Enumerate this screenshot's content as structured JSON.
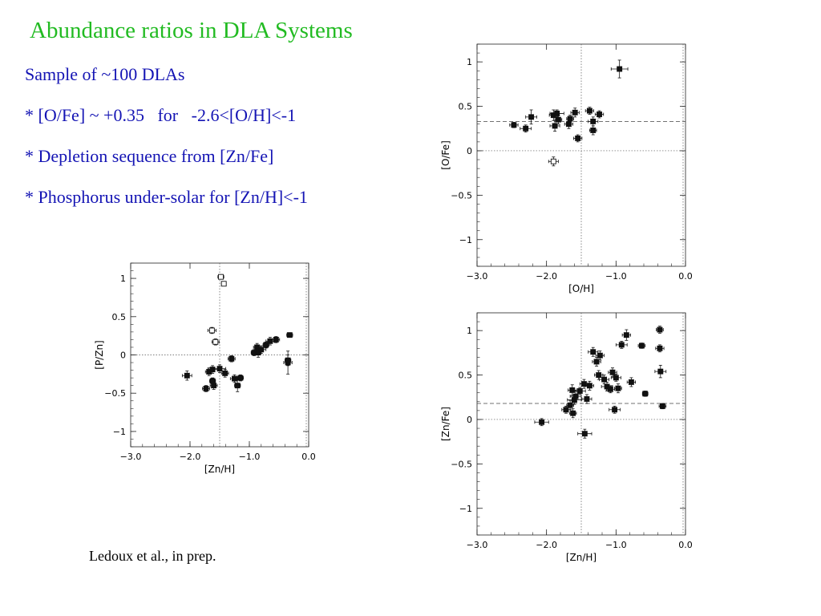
{
  "slide": {
    "title": "Abundance ratios in DLA Systems",
    "bullets": [
      "Sample of ~100 DLAs",
      "* [O/Fe] ~ +0.35   for   -2.6<[O/H]<-1",
      "* Depletion sequence from [Zn/Fe]",
      "* Phosphorus under-solar for [Zn/H]<-1"
    ],
    "citation": "Ledoux et al., in prep."
  },
  "colors": {
    "title": "#22bb22",
    "bullets": "#1414b4",
    "points": "#111111"
  },
  "chart_data": [
    {
      "id": "o-fe",
      "type": "scatter",
      "xlabel": "[O/H]",
      "ylabel": "[O/Fe]",
      "xlim": [
        -3.0,
        0.0
      ],
      "ylim": [
        -1.3,
        1.2
      ],
      "xticks": [
        -3.0,
        -2.0,
        -1.0,
        0.0
      ],
      "xtick_labels": [
        "−3.0",
        "−2.0",
        "−1.0",
        "0.0"
      ],
      "yticks": [
        -1,
        -0.5,
        0,
        0.5,
        1
      ],
      "ytick_labels": [
        "−1",
        "−0.5",
        "0",
        "0.5",
        "1"
      ],
      "ref_lines": {
        "vertical": [
          -1.5
        ],
        "horizontal_dotted": [
          0
        ],
        "horizontal_dashed": [
          0.33
        ]
      },
      "points": [
        {
          "x": -0.95,
          "y": 0.92,
          "xerr": 0.12,
          "yerr": 0.1
        },
        {
          "x": -2.47,
          "y": 0.29,
          "xerr": 0.06,
          "yerr": 0.03
        },
        {
          "x": -2.3,
          "y": 0.25,
          "xerr": 0.08,
          "yerr": 0.04
        },
        {
          "x": -2.22,
          "y": 0.38,
          "xerr": 0.08,
          "yerr": 0.08
        },
        {
          "x": -1.9,
          "y": 0.4,
          "xerr": 0.06,
          "yerr": 0.06
        },
        {
          "x": -1.85,
          "y": 0.42,
          "xerr": 0.1,
          "yerr": 0.04
        },
        {
          "x": -1.83,
          "y": 0.35,
          "xerr": 0.05,
          "yerr": 0.05
        },
        {
          "x": -1.88,
          "y": 0.28,
          "xerr": 0.07,
          "yerr": 0.06
        },
        {
          "x": -1.68,
          "y": 0.3,
          "xerr": 0.06,
          "yerr": 0.05
        },
        {
          "x": -1.66,
          "y": 0.36,
          "xerr": 0.05,
          "yerr": 0.04
        },
        {
          "x": -1.59,
          "y": 0.43,
          "xerr": 0.06,
          "yerr": 0.05
        },
        {
          "x": -1.55,
          "y": 0.14,
          "xerr": 0.06,
          "yerr": 0.04
        },
        {
          "x": -1.38,
          "y": 0.45,
          "xerr": 0.06,
          "yerr": 0.04
        },
        {
          "x": -1.33,
          "y": 0.33,
          "xerr": 0.07,
          "yerr": 0.05
        },
        {
          "x": -1.33,
          "y": 0.23,
          "xerr": 0.05,
          "yerr": 0.05
        },
        {
          "x": -1.24,
          "y": 0.41,
          "xerr": 0.06,
          "yerr": 0.04
        },
        {
          "x": -1.9,
          "y": -0.12,
          "xerr": 0.07,
          "yerr": 0.05,
          "open": true
        }
      ]
    },
    {
      "id": "p-zn",
      "type": "scatter",
      "xlabel": "[Zn/H]",
      "ylabel": "[P/Zn]",
      "xlim": [
        -3.0,
        0.0
      ],
      "ylim": [
        -1.2,
        1.2
      ],
      "xticks": [
        -3.0,
        -2.0,
        -1.0,
        0.0
      ],
      "xtick_labels": [
        "−3.0",
        "−2.0",
        "−1.0",
        "0.0"
      ],
      "yticks": [
        -1,
        -0.5,
        0,
        0.5,
        1
      ],
      "ytick_labels": [
        "−1",
        "−0.5",
        "0",
        "0.5",
        "1"
      ],
      "ref_lines": {
        "vertical": [
          -1.5
        ],
        "horizontal_dotted": [
          0
        ],
        "horizontal_dashed": []
      },
      "points": [
        {
          "x": -2.05,
          "y": -0.27,
          "xerr": 0.08,
          "yerr": 0.06
        },
        {
          "x": -1.73,
          "y": -0.44,
          "xerr": 0.06,
          "yerr": 0.04
        },
        {
          "x": -1.68,
          "y": -0.22,
          "xerr": 0.06,
          "yerr": 0.05
        },
        {
          "x": -1.62,
          "y": -0.19,
          "xerr": 0.08,
          "yerr": 0.05
        },
        {
          "x": -1.6,
          "y": -0.4,
          "xerr": 0.06,
          "yerr": 0.05
        },
        {
          "x": -1.62,
          "y": -0.34,
          "xerr": 0.05,
          "yerr": 0.04
        },
        {
          "x": -1.5,
          "y": -0.18,
          "xerr": 0.1,
          "yerr": 0.05
        },
        {
          "x": -1.41,
          "y": -0.24,
          "xerr": 0.06,
          "yerr": 0.05
        },
        {
          "x": -1.3,
          "y": -0.05,
          "xerr": 0.06,
          "yerr": 0.04
        },
        {
          "x": -1.25,
          "y": -0.31,
          "xerr": 0.07,
          "yerr": 0.05
        },
        {
          "x": -1.2,
          "y": -0.4,
          "xerr": 0.05,
          "yerr": 0.08
        },
        {
          "x": -1.15,
          "y": -0.3,
          "xerr": 0.05,
          "yerr": 0.04
        },
        {
          "x": -0.92,
          "y": 0.03,
          "xerr": 0.05,
          "yerr": 0.04
        },
        {
          "x": -0.87,
          "y": 0.1,
          "xerr": 0.06,
          "yerr": 0.05
        },
        {
          "x": -0.85,
          "y": 0.03,
          "xerr": 0.05,
          "yerr": 0.06
        },
        {
          "x": -0.8,
          "y": 0.07,
          "xerr": 0.08,
          "yerr": 0.05
        },
        {
          "x": -0.72,
          "y": 0.13,
          "xerr": 0.05,
          "yerr": 0.04
        },
        {
          "x": -0.65,
          "y": 0.18,
          "xerr": 0.07,
          "yerr": 0.05
        },
        {
          "x": -0.55,
          "y": 0.2,
          "xerr": 0.06,
          "yerr": 0.04
        },
        {
          "x": -0.35,
          "y": -0.1,
          "xerr": 0.07,
          "yerr": 0.15
        },
        {
          "x": -0.35,
          "y": -0.07,
          "xerr": 0.05,
          "yerr": 0.07
        },
        {
          "x": -0.32,
          "y": 0.26,
          "xerr": 0.05,
          "yerr": 0.03
        },
        {
          "x": -1.48,
          "y": 1.02,
          "xerr": 0.05,
          "yerr": 0.03,
          "open": true
        },
        {
          "x": -1.43,
          "y": 0.93,
          "xerr": 0.04,
          "yerr": 0.03,
          "open": true
        },
        {
          "x": -1.63,
          "y": 0.32,
          "xerr": 0.07,
          "yerr": 0.04,
          "open": true
        },
        {
          "x": -1.57,
          "y": 0.17,
          "xerr": 0.06,
          "yerr": 0.04,
          "open": true
        }
      ]
    },
    {
      "id": "zn-fe",
      "type": "scatter",
      "xlabel": "[Zn/H]",
      "ylabel": "[Zn/Fe]",
      "xlim": [
        -3.0,
        0.0
      ],
      "ylim": [
        -1.3,
        1.2
      ],
      "xticks": [
        -3.0,
        -2.0,
        -1.0,
        0.0
      ],
      "xtick_labels": [
        "−3.0",
        "−2.0",
        "−1.0",
        "0.0"
      ],
      "yticks": [
        -1,
        -0.5,
        0,
        0.5,
        1
      ],
      "ytick_labels": [
        "−1",
        "−0.5",
        "0",
        "0.5",
        "1"
      ],
      "ref_lines": {
        "vertical": [
          -1.5
        ],
        "horizontal_dotted": [
          0
        ],
        "horizontal_dashed": [
          0.18
        ]
      },
      "points": [
        {
          "x": -2.07,
          "y": -0.03,
          "xerr": 0.1,
          "yerr": 0.04
        },
        {
          "x": -1.72,
          "y": 0.11,
          "xerr": 0.06,
          "yerr": 0.04
        },
        {
          "x": -1.66,
          "y": 0.16,
          "xerr": 0.05,
          "yerr": 0.05
        },
        {
          "x": -1.63,
          "y": 0.33,
          "xerr": 0.06,
          "yerr": 0.06
        },
        {
          "x": -1.6,
          "y": 0.22,
          "xerr": 0.1,
          "yerr": 0.05
        },
        {
          "x": -1.58,
          "y": 0.26,
          "xerr": 0.08,
          "yerr": 0.06
        },
        {
          "x": -1.62,
          "y": 0.07,
          "xerr": 0.05,
          "yerr": 0.05
        },
        {
          "x": -1.52,
          "y": 0.32,
          "xerr": 0.08,
          "yerr": 0.04
        },
        {
          "x": -1.46,
          "y": 0.4,
          "xerr": 0.06,
          "yerr": 0.05
        },
        {
          "x": -1.42,
          "y": 0.23,
          "xerr": 0.07,
          "yerr": 0.05
        },
        {
          "x": -1.38,
          "y": 0.38,
          "xerr": 0.06,
          "yerr": 0.05
        },
        {
          "x": -1.33,
          "y": 0.76,
          "xerr": 0.07,
          "yerr": 0.05
        },
        {
          "x": -1.28,
          "y": 0.65,
          "xerr": 0.06,
          "yerr": 0.05
        },
        {
          "x": -1.23,
          "y": 0.72,
          "xerr": 0.06,
          "yerr": 0.05
        },
        {
          "x": -1.25,
          "y": 0.5,
          "xerr": 0.06,
          "yerr": 0.05
        },
        {
          "x": -1.17,
          "y": 0.45,
          "xerr": 0.07,
          "yerr": 0.05
        },
        {
          "x": -1.13,
          "y": 0.37,
          "xerr": 0.08,
          "yerr": 0.05
        },
        {
          "x": -1.08,
          "y": 0.34,
          "xerr": 0.06,
          "yerr": 0.04
        },
        {
          "x": -1.05,
          "y": 0.53,
          "xerr": 0.06,
          "yerr": 0.05
        },
        {
          "x": -1.0,
          "y": 0.47,
          "xerr": 0.07,
          "yerr": 0.04
        },
        {
          "x": -0.97,
          "y": 0.35,
          "xerr": 0.05,
          "yerr": 0.05
        },
        {
          "x": -1.02,
          "y": 0.11,
          "xerr": 0.08,
          "yerr": 0.04
        },
        {
          "x": -0.92,
          "y": 0.84,
          "xerr": 0.08,
          "yerr": 0.04
        },
        {
          "x": -0.85,
          "y": 0.95,
          "xerr": 0.06,
          "yerr": 0.06
        },
        {
          "x": -0.78,
          "y": 0.42,
          "xerr": 0.06,
          "yerr": 0.05
        },
        {
          "x": -0.63,
          "y": 0.83,
          "xerr": 0.05,
          "yerr": 0.03
        },
        {
          "x": -0.58,
          "y": 0.29,
          "xerr": 0.04,
          "yerr": 0.03
        },
        {
          "x": -0.37,
          "y": 1.01,
          "xerr": 0.05,
          "yerr": 0.04
        },
        {
          "x": -0.37,
          "y": 0.8,
          "xerr": 0.06,
          "yerr": 0.04
        },
        {
          "x": -0.36,
          "y": 0.54,
          "xerr": 0.08,
          "yerr": 0.07
        },
        {
          "x": -0.33,
          "y": 0.15,
          "xerr": 0.05,
          "yerr": 0.03
        },
        {
          "x": -1.45,
          "y": -0.16,
          "xerr": 0.1,
          "yerr": 0.05
        }
      ]
    }
  ]
}
